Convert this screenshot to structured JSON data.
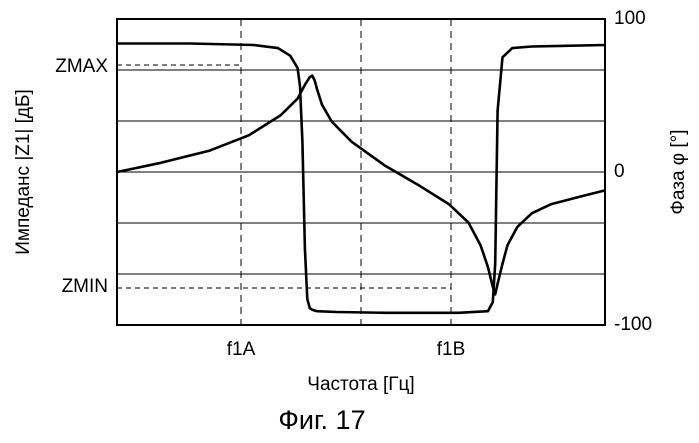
{
  "chart_data": {
    "type": "line",
    "caption": "Фиг. 17",
    "xlabel": "Частота [Гц]",
    "ylabel_left": "Импеданс |Z1| [дБ]",
    "ylabel_right": "Фаза φ [°]",
    "right_ticks": [
      "100",
      "0",
      "-100"
    ],
    "right_ylim": [
      -100,
      100
    ],
    "left_markers": {
      "zmax": "ZMAX",
      "zmin": "ZMIN"
    },
    "x_markers": [
      "f1A",
      "f1B"
    ],
    "grid": {
      "horizontal": true,
      "vertical": "dashed"
    },
    "series": [
      {
        "x": [
          0,
          0.09,
          0.19,
          0.27,
          0.335,
          0.37,
          0.385,
          0.395,
          0.4,
          0.405,
          0.41,
          0.42,
          0.44,
          0.48,
          0.55,
          0.62,
          0.68,
          0.72,
          0.745,
          0.76,
          0.77,
          0.775,
          0.78,
          0.79,
          0.8,
          0.82,
          0.85,
          0.89,
          0.95,
          1.0
        ],
        "y": [
          0,
          6,
          14,
          24,
          37,
          48,
          57,
          62,
          63,
          60,
          54,
          44,
          33,
          20,
          4,
          -9,
          -21,
          -33,
          -48,
          -62,
          -75,
          -80,
          -73,
          -60,
          -48,
          -36,
          -27,
          -21,
          -16,
          -12
        ]
      },
      {
        "x": [
          0,
          0.15,
          0.28,
          0.33,
          0.355,
          0.37,
          0.375,
          0.38,
          0.385,
          0.39,
          0.395,
          0.4,
          0.41,
          0.45,
          0.55,
          0.7,
          0.76,
          0.77,
          0.775,
          0.78,
          0.79,
          0.81,
          0.85,
          0.92,
          1.0
        ],
        "y": [
          84,
          84,
          83,
          81,
          76,
          68,
          56,
          20,
          -50,
          -83,
          -89,
          -90,
          -91,
          -91.5,
          -92,
          -92,
          -91,
          -85,
          -60,
          40,
          75,
          81,
          82,
          82.5,
          83
        ]
      }
    ]
  }
}
